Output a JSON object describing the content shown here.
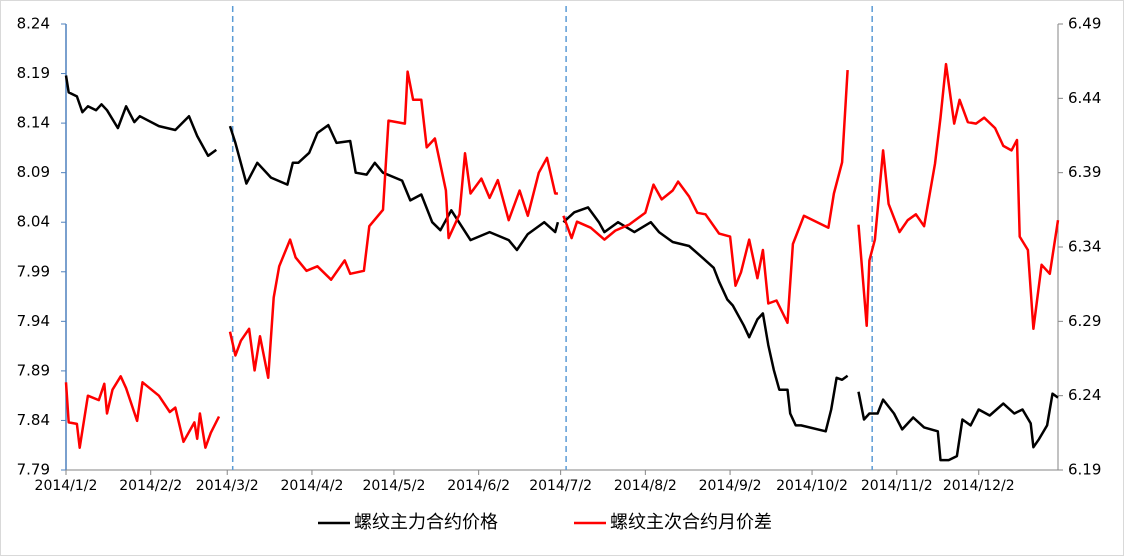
{
  "chart_data": {
    "type": "line",
    "xlim": [
      "2014/1/2",
      "2014/12/31"
    ],
    "xticks": [
      "2014/1/2",
      "2014/2/2",
      "2014/3/2",
      "2014/4/2",
      "2014/5/2",
      "2014/6/2",
      "2014/7/2",
      "2014/8/2",
      "2014/9/2",
      "2014/10/2",
      "2014/11/2",
      "2014/12/2"
    ],
    "ylim": [
      7.79,
      8.24
    ],
    "yticks": [
      7.79,
      7.84,
      7.89,
      7.94,
      7.99,
      8.04,
      8.09,
      8.14,
      8.19,
      8.24
    ],
    "y2lim": [
      6.19,
      6.49
    ],
    "y2ticks": [
      6.19,
      6.24,
      6.29,
      6.34,
      6.39,
      6.44,
      6.49
    ],
    "legend": "bottom",
    "rollovers": {
      "color": "#5b9bd5",
      "x": [
        "2014/3/4",
        "2014/7/4",
        "2014/10/24"
      ]
    },
    "series": [
      {
        "name": "螺纹主力合约价格",
        "color": "#000000",
        "x": [
          "2014/1/2",
          "2014/1/3",
          "2014/1/6",
          "2014/1/8",
          "2014/1/10",
          "2014/1/13",
          "2014/1/15",
          "2014/1/17",
          "2014/1/21",
          "2014/1/24",
          "2014/1/27",
          "2014/1/29",
          "2014/2/5",
          "2014/2/11",
          "2014/2/16",
          "2014/2/19",
          "2014/2/23",
          "2014/2/26",
          "2014/3/1",
          "2014/3/3",
          "2014/3/5",
          "2014/3/9",
          "2014/3/13",
          "2014/3/18",
          "2014/3/24",
          "2014/3/26",
          "2014/3/28",
          "2014/4/1",
          "2014/4/4",
          "2014/4/8",
          "2014/4/11",
          "2014/4/16",
          "2014/4/18",
          "2014/4/22",
          "2014/4/25",
          "2014/4/28",
          "2014/5/5",
          "2014/5/8",
          "2014/5/12",
          "2014/5/16",
          "2014/5/19",
          "2014/5/23",
          "2014/5/30",
          "2014/6/6",
          "2014/6/13",
          "2014/6/16",
          "2014/6/20",
          "2014/6/26",
          "2014/6/30",
          "2014/7/1",
          "2014/7/2",
          "2014/7/3",
          "2014/7/7",
          "2014/7/12",
          "2014/7/16",
          "2014/7/18",
          "2014/7/23",
          "2014/7/29",
          "2014/8/4",
          "2014/8/7",
          "2014/8/12",
          "2014/8/18",
          "2014/8/23",
          "2014/8/27",
          "2014/8/29",
          "2014/9/1",
          "2014/9/3",
          "2014/9/7",
          "2014/9/9",
          "2014/9/12",
          "2014/9/14",
          "2014/9/16",
          "2014/9/18",
          "2014/9/20",
          "2014/9/23",
          "2014/9/24",
          "2014/9/26",
          "2014/9/28",
          "2014/10/7",
          "2014/10/9",
          "2014/10/11",
          "2014/10/13",
          "2014/10/15",
          "2014/10/17",
          "2014/10/19",
          "2014/10/21",
          "2014/10/23",
          "2014/10/26",
          "2014/10/28",
          "2014/11/1",
          "2014/11/4",
          "2014/11/8",
          "2014/11/12",
          "2014/11/17",
          "2014/11/18",
          "2014/11/21",
          "2014/11/24",
          "2014/11/26",
          "2014/11/29",
          "2014/12/2",
          "2014/12/6",
          "2014/12/11",
          "2014/12/15",
          "2014/12/18",
          "2014/12/21",
          "2014/12/22",
          "2014/12/24",
          "2014/12/27",
          "2014/12/29",
          "2014/12/31"
        ],
        "values": [
          8.188,
          8.171,
          8.167,
          8.151,
          8.157,
          8.153,
          8.159,
          8.153,
          8.135,
          8.157,
          8.141,
          8.147,
          8.137,
          8.133,
          8.147,
          8.127,
          8.107,
          8.113,
          null,
          8.137,
          8.12,
          8.079,
          8.1,
          8.085,
          8.078,
          8.1,
          8.1,
          8.11,
          8.13,
          8.138,
          8.12,
          8.122,
          8.09,
          8.088,
          8.1,
          8.09,
          8.082,
          8.062,
          8.068,
          8.04,
          8.032,
          8.052,
          8.022,
          8.03,
          8.022,
          8.012,
          8.028,
          8.04,
          8.03,
          8.04,
          null,
          8.04,
          8.05,
          8.055,
          8.04,
          8.03,
          8.04,
          8.03,
          8.04,
          8.03,
          8.02,
          8.016,
          8.004,
          7.994,
          7.98,
          7.962,
          7.956,
          7.936,
          7.924,
          7.942,
          7.948,
          7.916,
          7.891,
          7.871,
          7.871,
          7.847,
          7.835,
          7.835,
          7.829,
          7.851,
          7.883,
          7.881,
          7.885,
          null,
          7.869,
          7.841,
          7.847,
          7.847,
          7.861,
          7.847,
          7.831,
          7.843,
          7.833,
          7.829,
          7.8,
          7.8,
          7.804,
          7.841,
          7.835,
          7.851,
          7.845,
          7.857,
          7.847,
          7.851,
          7.837,
          7.813,
          7.821,
          7.835,
          7.867,
          7.863
        ]
      },
      {
        "name": "螺纹主次合约月价差",
        "color": "#ff0000",
        "axis": "y2",
        "x": [
          "2014/1/2",
          "2014/1/3",
          "2014/1/6",
          "2014/1/7",
          "2014/1/10",
          "2014/1/14",
          "2014/1/16",
          "2014/1/17",
          "2014/1/19",
          "2014/1/22",
          "2014/1/24",
          "2014/1/28",
          "2014/1/30",
          "2014/2/5",
          "2014/2/9",
          "2014/2/11",
          "2014/2/14",
          "2014/2/18",
          "2014/2/19",
          "2014/2/20",
          "2014/2/22",
          "2014/2/24",
          "2014/2/27",
          "2014/3/1",
          "2014/3/3",
          "2014/3/5",
          "2014/3/7",
          "2014/3/10",
          "2014/3/12",
          "2014/3/14",
          "2014/3/17",
          "2014/3/19",
          "2014/3/21",
          "2014/3/25",
          "2014/3/27",
          "2014/3/31",
          "2014/4/4",
          "2014/4/9",
          "2014/4/14",
          "2014/4/16",
          "2014/4/21",
          "2014/4/23",
          "2014/4/28",
          "2014/4/30",
          "2014/5/6",
          "2014/5/7",
          "2014/5/9",
          "2014/5/12",
          "2014/5/14",
          "2014/5/17",
          "2014/5/21",
          "2014/5/22",
          "2014/5/26",
          "2014/5/28",
          "2014/5/30",
          "2014/6/3",
          "2014/6/6",
          "2014/6/9",
          "2014/6/13",
          "2014/6/17",
          "2014/6/20",
          "2014/6/24",
          "2014/6/27",
          "2014/6/30",
          "2014/7/1",
          "2014/7/2",
          "2014/7/3",
          "2014/7/6",
          "2014/7/8",
          "2014/7/13",
          "2014/7/18",
          "2014/7/22",
          "2014/7/27",
          "2014/8/2",
          "2014/8/5",
          "2014/8/8",
          "2014/8/12",
          "2014/8/14",
          "2014/8/18",
          "2014/8/21",
          "2014/8/24",
          "2014/8/29",
          "2014/9/2",
          "2014/9/4",
          "2014/9/6",
          "2014/9/9",
          "2014/9/12",
          "2014/9/14",
          "2014/9/16",
          "2014/9/19",
          "2014/9/23",
          "2014/9/25",
          "2014/9/29",
          "2014/10/8",
          "2014/10/10",
          "2014/10/13",
          "2014/10/15",
          "2014/10/17",
          "2014/10/19",
          "2014/10/22",
          "2014/10/23",
          "2014/10/25",
          "2014/10/28",
          "2014/10/30",
          "2014/11/3",
          "2014/11/6",
          "2014/11/9",
          "2014/11/12",
          "2014/11/16",
          "2014/11/18",
          "2014/11/20",
          "2014/11/23",
          "2014/11/25",
          "2014/11/28",
          "2014/12/1",
          "2014/12/4",
          "2014/12/8",
          "2014/12/11",
          "2014/12/14",
          "2014/12/16",
          "2014/12/17",
          "2014/12/20",
          "2014/12/22",
          "2014/12/25",
          "2014/12/28",
          "2014/12/31"
        ],
        "values": [
          6.249,
          6.222,
          6.221,
          6.205,
          6.24,
          6.237,
          6.248,
          6.228,
          6.244,
          6.253,
          6.245,
          6.223,
          6.249,
          6.24,
          6.229,
          6.232,
          6.209,
          6.222,
          6.211,
          6.228,
          6.205,
          6.215,
          6.226,
          null,
          6.283,
          6.267,
          6.277,
          6.285,
          6.257,
          6.28,
          6.252,
          6.306,
          6.327,
          6.345,
          6.333,
          6.324,
          6.327,
          6.318,
          6.331,
          6.322,
          6.324,
          6.354,
          6.365,
          6.425,
          6.423,
          6.458,
          6.439,
          6.439,
          6.407,
          6.413,
          6.378,
          6.346,
          6.362,
          6.403,
          6.376,
          6.386,
          6.373,
          6.385,
          6.358,
          6.378,
          6.361,
          6.39,
          6.4,
          6.376,
          6.376,
          null,
          6.361,
          6.346,
          6.357,
          6.353,
          6.345,
          6.351,
          6.355,
          6.363,
          6.382,
          6.372,
          6.378,
          6.384,
          6.374,
          6.363,
          6.362,
          6.349,
          6.347,
          6.314,
          6.323,
          6.345,
          6.319,
          6.338,
          6.302,
          6.304,
          6.289,
          6.342,
          6.361,
          6.353,
          6.376,
          6.397,
          6.459,
          null,
          6.355,
          6.287,
          6.331,
          6.345,
          6.405,
          6.369,
          6.35,
          6.358,
          6.362,
          6.354,
          6.396,
          6.427,
          6.463,
          6.423,
          6.439,
          6.424,
          6.423,
          6.427,
          6.42,
          6.408,
          6.405,
          6.412,
          6.347,
          6.338,
          6.285,
          6.328,
          6.322,
          6.358
        ]
      }
    ]
  }
}
